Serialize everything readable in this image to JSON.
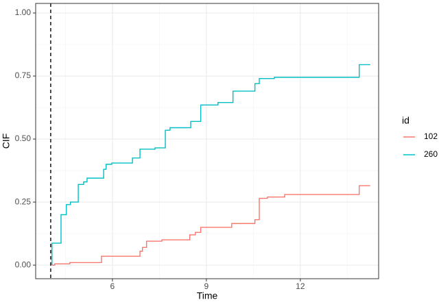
{
  "chart_data": {
    "type": "step",
    "x_label": "Time",
    "y_label": "CIF",
    "xlim": [
      3.55,
      14.5
    ],
    "ylim": [
      -0.054,
      1.038
    ],
    "xticks": [
      6,
      9,
      12
    ],
    "yticks": [
      {
        "value": 0,
        "label": "0.00"
      },
      {
        "value": 0.25,
        "label": "0.25"
      },
      {
        "value": 0.5,
        "label": "0.50"
      },
      {
        "value": 0.75,
        "label": "0.75"
      },
      {
        "value": 1,
        "label": "1.00"
      }
    ],
    "grid": true,
    "vline": 4.03,
    "legend_title": "id",
    "series": [
      {
        "name": "102",
        "color": "#f8766d",
        "x": [
          4.07,
          4.16,
          4.64,
          5.65,
          6.88,
          6.96,
          7.09,
          7.58,
          8.47,
          8.65,
          8.82,
          9.81,
          10.55,
          10.69,
          10.95,
          11.5,
          13.88,
          14.23
        ],
        "values": [
          0,
          0.005,
          0.01,
          0.035,
          0.055,
          0.07,
          0.095,
          0.1,
          0.12,
          0.13,
          0.15,
          0.165,
          0.18,
          0.265,
          0.27,
          0.28,
          0.315,
          0.315
        ]
      },
      {
        "name": "260",
        "color": "#00bfc4",
        "x": [
          4.07,
          4.07,
          4.36,
          4.53,
          4.66,
          4.91,
          5.08,
          5.19,
          5.72,
          5.8,
          5.98,
          6.64,
          6.88,
          7.36,
          7.69,
          7.84,
          8.5,
          8.82,
          9.37,
          9.85,
          10.55,
          10.69,
          11.17,
          13.88,
          14.23
        ],
        "values": [
          0,
          0.087,
          0.2,
          0.24,
          0.25,
          0.32,
          0.33,
          0.345,
          0.38,
          0.4,
          0.405,
          0.425,
          0.46,
          0.465,
          0.535,
          0.545,
          0.57,
          0.635,
          0.645,
          0.69,
          0.72,
          0.74,
          0.745,
          0.795,
          0.795
        ]
      }
    ]
  }
}
